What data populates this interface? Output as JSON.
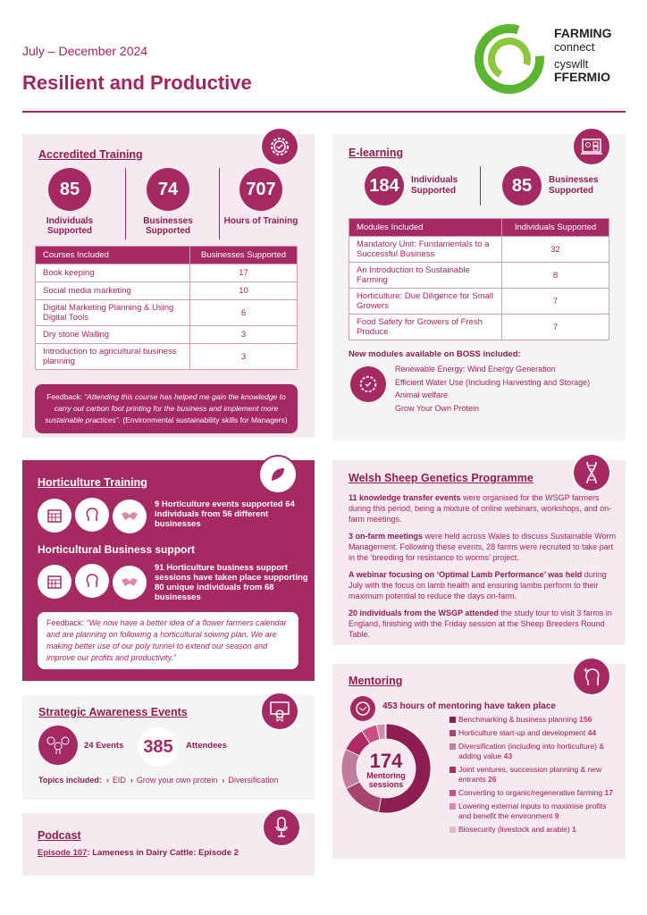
{
  "header": {
    "period": "July – December 2024",
    "title": "Resilient and Productive",
    "logo": {
      "line1": "FARMING",
      "line2": "connect",
      "line3": "cyswllt",
      "line4": "FFERMIO",
      "colors": [
        "#5cb531",
        "#8dc63f"
      ]
    }
  },
  "accredited": {
    "title": "Accredited Training",
    "icon": "gear-check-icon",
    "stats": [
      {
        "value": "85",
        "label": "Individuals Supported"
      },
      {
        "value": "74",
        "label": "Businesses Supported"
      },
      {
        "value": "707",
        "label": "Hours of Training"
      }
    ],
    "table": {
      "headers": [
        "Courses Included",
        "Businesses Supported"
      ],
      "rows": [
        [
          "Book keeping",
          "17"
        ],
        [
          "Social media marketing",
          "10"
        ],
        [
          "Digital Marketing Planning & Using Digital Tools",
          "6"
        ],
        [
          "Dry stone Walling",
          "3"
        ],
        [
          "Introduction to agricultural business planning",
          "3"
        ]
      ]
    },
    "feedback_prefix": "Feedback: ",
    "feedback_quote": "“Attending this course has helped me gain the knowledge to carry out carbon foot printing for the business and implement more sustainable practices”.",
    "feedback_suffix": " (Environmental sustainability skills for Managers)"
  },
  "elearning": {
    "title": "E-learning",
    "icon": "online-meeting-icon",
    "stats": [
      {
        "value": "184",
        "label": "Individuals Supported"
      },
      {
        "value": "85",
        "label": "Businesses Supported"
      }
    ],
    "table": {
      "headers": [
        "Modules Included",
        "Individuals Supported"
      ],
      "rows": [
        [
          "Mandatory Unit: Fundamentals to a Successful Business",
          "32"
        ],
        [
          "An Introduction to Sustainable Farming",
          "8"
        ],
        [
          "Horticulture: Due Diligence for Small Growers",
          "7"
        ],
        [
          "Food Safety for Growers of Fresh Produce",
          "7"
        ]
      ]
    },
    "new_modules_title": "New modules available on BOSS included:",
    "new_modules": [
      "Renewable Energy: Wind Energy Generation",
      "Efficient Water Use (Including Harvesting and Storage)",
      "Animal welfare",
      "Grow Your Own Protein"
    ]
  },
  "horticulture": {
    "title": "Horticulture Training",
    "icon": "leaf-icon",
    "training_text": "9 Horticulture events supported 64 individuals from 56 different businesses",
    "support_title": "Horticultural Business support",
    "support_text": "91 Horticulture business support sessions have taken place supporting 80 unique individuals from 68 businesses",
    "feedback_prefix": "Feedback: ",
    "feedback_quote": "“We now have a better idea of a flower farmers calendar and are planning on following a horticultural sowing plan. We are making better use of our poly tunnel to extend our season and improve our profits and productivity.”"
  },
  "wsgp": {
    "title": "Welsh Sheep Genetics Programme",
    "icon": "dna-icon",
    "paragraphs": [
      {
        "bold": "11 knowledge transfer events",
        "text": " were organised for the WSGP farmers during this period, being a mixture of online webinars, workshops, and on-farm meetings."
      },
      {
        "bold": "3 on-farm meetings",
        "text": " were held across Wales to discuss Sustainable Worm Management.  Following these events, 28 farms were recruited to take part in the ‘breeding for resistance to worms’ project."
      },
      {
        "bold": "A webinar focusing on ‘Optimal Lamb Performance’ was held",
        "text": " during July with the focus on lamb health and ensuring lambs perform to their maximum potential to reduce the days on-farm."
      },
      {
        "bold": "20 individuals from the WSGP attended",
        "text": " the study tour to visit 3 farms in England, finishing with the Friday session at the Sheep Breeders Round Table."
      }
    ]
  },
  "strategic": {
    "title": "Strategic Awareness Events",
    "icon": "certificate-icon",
    "events": "24 Events",
    "attendees_value": "385",
    "attendees_label": "Attendees",
    "topics_label": "Topics included:",
    "topics": [
      "EID",
      "Grow your own protein",
      "Diversification"
    ]
  },
  "podcast": {
    "title": "Podcast",
    "icon": "microphone-icon",
    "episode_link": "Episode 107",
    "episode_title": ": Lameness in Dairy Cattle: Episode 2"
  },
  "mentoring": {
    "title": "Mentoring",
    "icon": "head-plus-icon",
    "hours_text": "453 hours of mentoring have taken place",
    "center_value": "174",
    "center_label": "Mentoring sessions"
  },
  "chart_data": {
    "type": "pie",
    "variant": "donut",
    "categories": [
      "Benchmarking & business planning",
      "Horticulture start-up and development",
      "Diversification (including into horticulture) & adding value",
      "Joint ventures, succession planning & new entrants",
      "Converting to organic/regenerative farming",
      "Lowering external inputs to maximise profits and benefit the environment",
      "Biosecurity (livestock and arable)"
    ],
    "values": [
      156,
      44,
      43,
      26,
      17,
      9,
      1
    ],
    "colors": [
      "#8e1d52",
      "#a8456f",
      "#c07d9b",
      "#b02a66",
      "#c94f84",
      "#d48aaa",
      "#e6b6c9"
    ],
    "legend": "right"
  }
}
